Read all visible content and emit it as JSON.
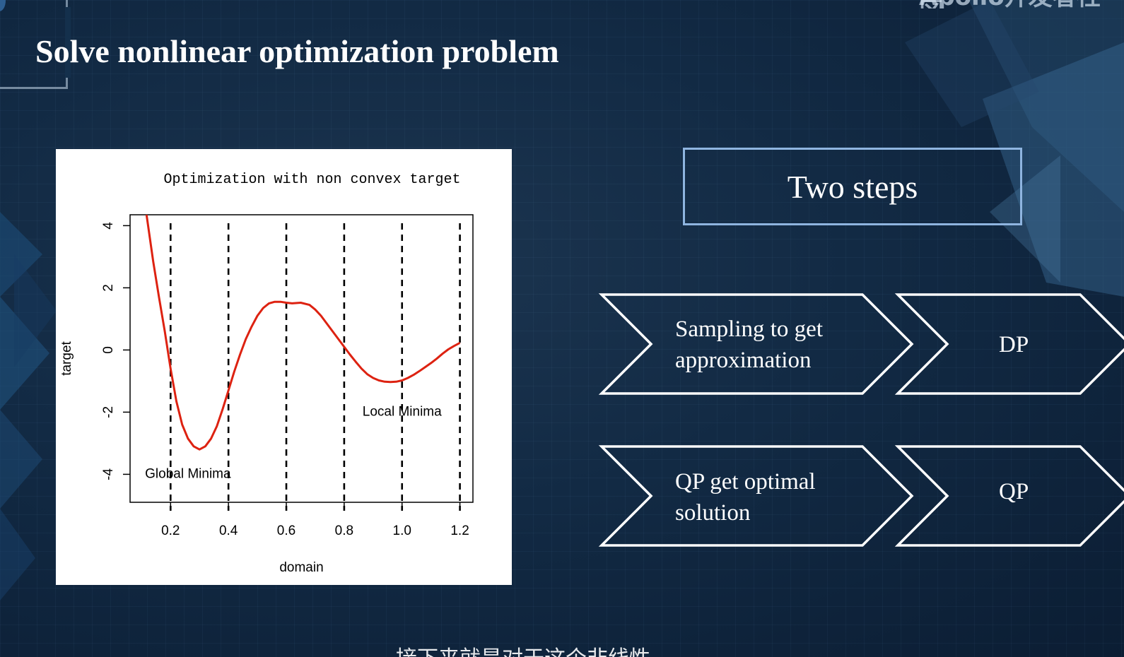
{
  "slide": {
    "title": "Solve nonlinear optimization problem",
    "brand_text": "Apollo开发者社区",
    "subtitle_text": "接下来就是对于这个非线性"
  },
  "steps": {
    "heading": "Two steps",
    "rows": [
      {
        "description": "Sampling to get approximation",
        "lines": [
          "Sampling to get",
          "approximation"
        ],
        "method": "DP"
      },
      {
        "description": "QP get optimal solution",
        "lines": [
          "QP get optimal",
          "solution"
        ],
        "method": "QP"
      }
    ]
  },
  "chart_data": {
    "type": "line",
    "title": "Optimization with non convex target",
    "xlabel": "domain",
    "ylabel": "target",
    "xlim": [
      0.06,
      1.245
    ],
    "ylim": [
      -4.9,
      4.35
    ],
    "xticks": [
      0.2,
      0.4,
      0.6,
      0.8,
      1.0,
      1.2
    ],
    "xtick_labels": [
      "0.2",
      "0.4",
      "0.6",
      "0.8",
      "1.0",
      "1.2"
    ],
    "yticks": [
      -4,
      -2,
      0,
      2,
      4
    ],
    "ytick_labels": [
      "-4",
      "-2",
      "0",
      "2",
      "4"
    ],
    "vlines": [
      0.2,
      0.4,
      0.6,
      0.8,
      1.0,
      1.2
    ],
    "series": [
      {
        "color": "#dd2211",
        "x": [
          0.117,
          0.14,
          0.16,
          0.18,
          0.2,
          0.22,
          0.24,
          0.26,
          0.28,
          0.3,
          0.32,
          0.34,
          0.36,
          0.38,
          0.4,
          0.42,
          0.44,
          0.46,
          0.48,
          0.5,
          0.52,
          0.54,
          0.56,
          0.58,
          0.6,
          0.62,
          0.65,
          0.68,
          0.7,
          0.72,
          0.74,
          0.76,
          0.78,
          0.8,
          0.82,
          0.84,
          0.86,
          0.88,
          0.9,
          0.92,
          0.94,
          0.96,
          0.98,
          1.0,
          1.02,
          1.04,
          1.06,
          1.08,
          1.1,
          1.12,
          1.14,
          1.16,
          1.18,
          1.2
        ],
        "y": [
          4.35,
          2.85,
          1.7,
          0.6,
          -0.6,
          -1.65,
          -2.4,
          -2.85,
          -3.1,
          -3.2,
          -3.1,
          -2.85,
          -2.45,
          -1.9,
          -1.3,
          -0.7,
          -0.15,
          0.35,
          0.75,
          1.1,
          1.35,
          1.5,
          1.55,
          1.55,
          1.52,
          1.5,
          1.52,
          1.45,
          1.3,
          1.1,
          0.85,
          0.6,
          0.35,
          0.1,
          -0.15,
          -0.38,
          -0.6,
          -0.78,
          -0.9,
          -0.98,
          -1.02,
          -1.03,
          -1.02,
          -0.98,
          -0.9,
          -0.8,
          -0.68,
          -0.55,
          -0.42,
          -0.28,
          -0.12,
          0.02,
          0.13,
          0.23
        ]
      }
    ],
    "annotations": [
      {
        "text": "Global Minima",
        "x": 0.26,
        "y": -4.0
      },
      {
        "text": "Local Minima",
        "x": 1.0,
        "y": -2.0
      }
    ],
    "grid": false
  }
}
